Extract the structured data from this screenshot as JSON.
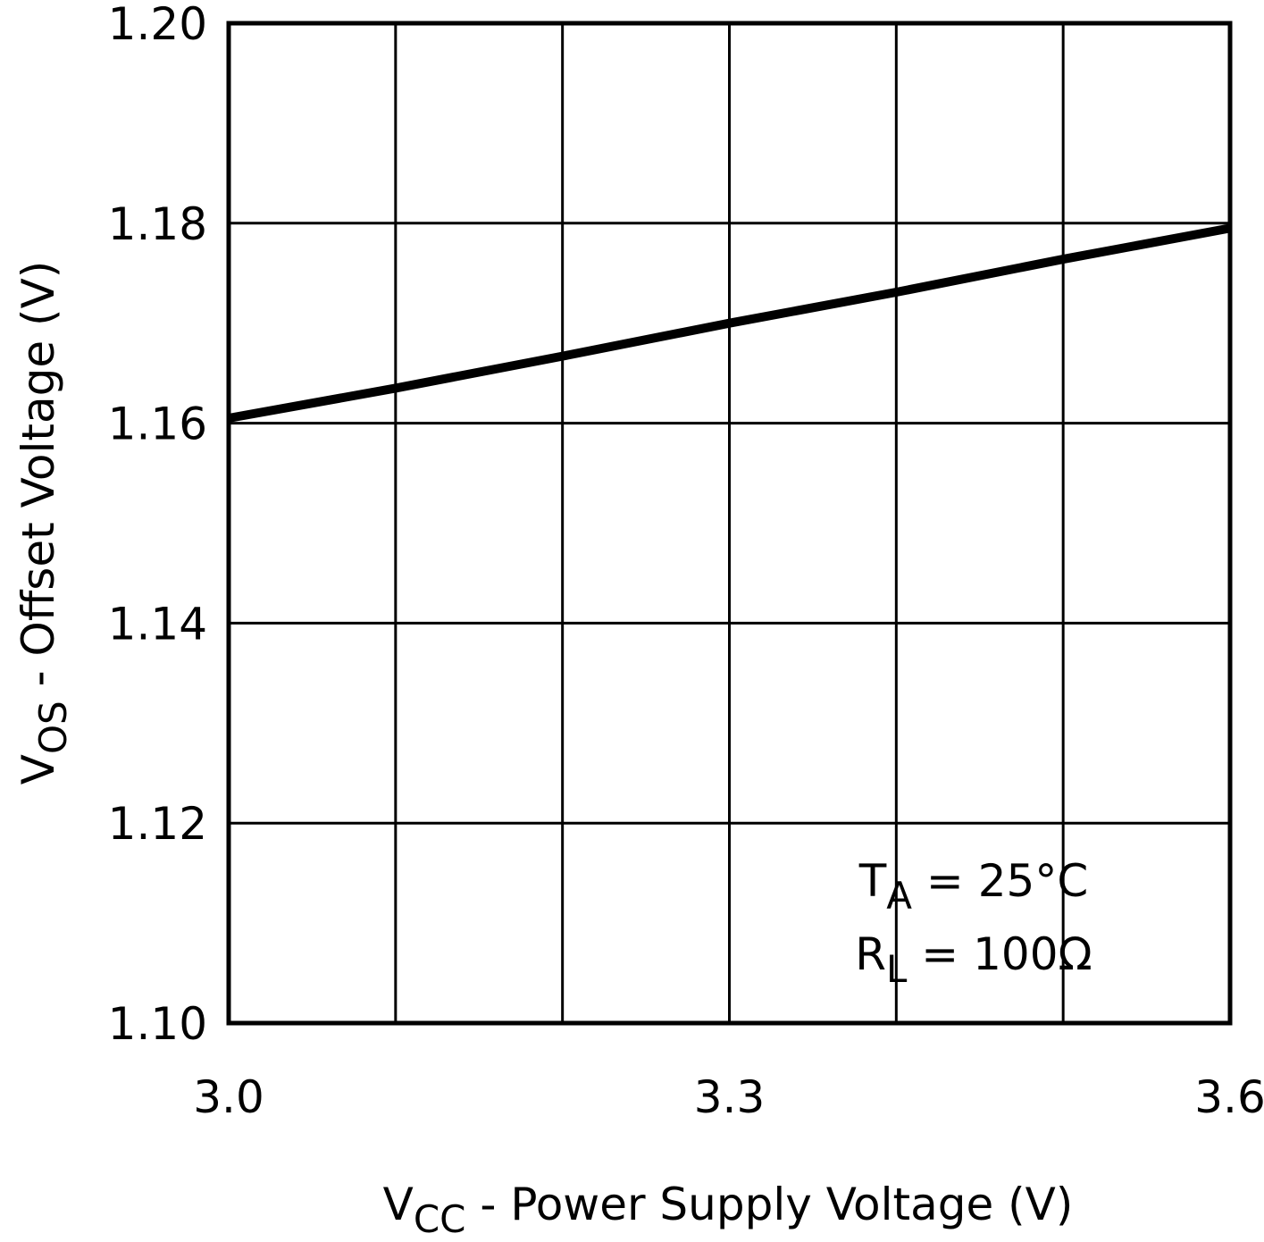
{
  "chart_data": {
    "type": "line",
    "x_label": {
      "main": "V",
      "sub": "CC",
      "rest": " - Power Supply Voltage (V)"
    },
    "y_label": {
      "main": "V",
      "sub": "OS",
      "rest": " - Offset Voltage (V)"
    },
    "annotations": [
      {
        "main": "T",
        "sub": "A",
        "rest": " = 25°C"
      },
      {
        "main": "R",
        "sub": "L",
        "rest": " = 100Ω"
      }
    ],
    "x": [
      3.0,
      3.1,
      3.2,
      3.3,
      3.4,
      3.5,
      3.6
    ],
    "series": [
      {
        "color": "#000000",
        "values": [
          1.1605,
          1.1635,
          1.1667,
          1.17,
          1.1731,
          1.1764,
          1.1795
        ]
      }
    ],
    "xlim": [
      3.0,
      3.6
    ],
    "xticks": [
      {
        "value": 3,
        "label": "3.0"
      },
      3.3,
      3.6
    ],
    "xminor_grid": [
      3.1,
      3.2,
      3.4,
      3.5
    ],
    "ylim": [
      1.1,
      1.2
    ],
    "yticks": [
      {
        "value": 1.1,
        "label": "1.10"
      },
      1.12,
      1.14,
      1.16,
      1.18,
      {
        "value": 1.2,
        "label": "1.20"
      }
    ],
    "grid": true
  }
}
